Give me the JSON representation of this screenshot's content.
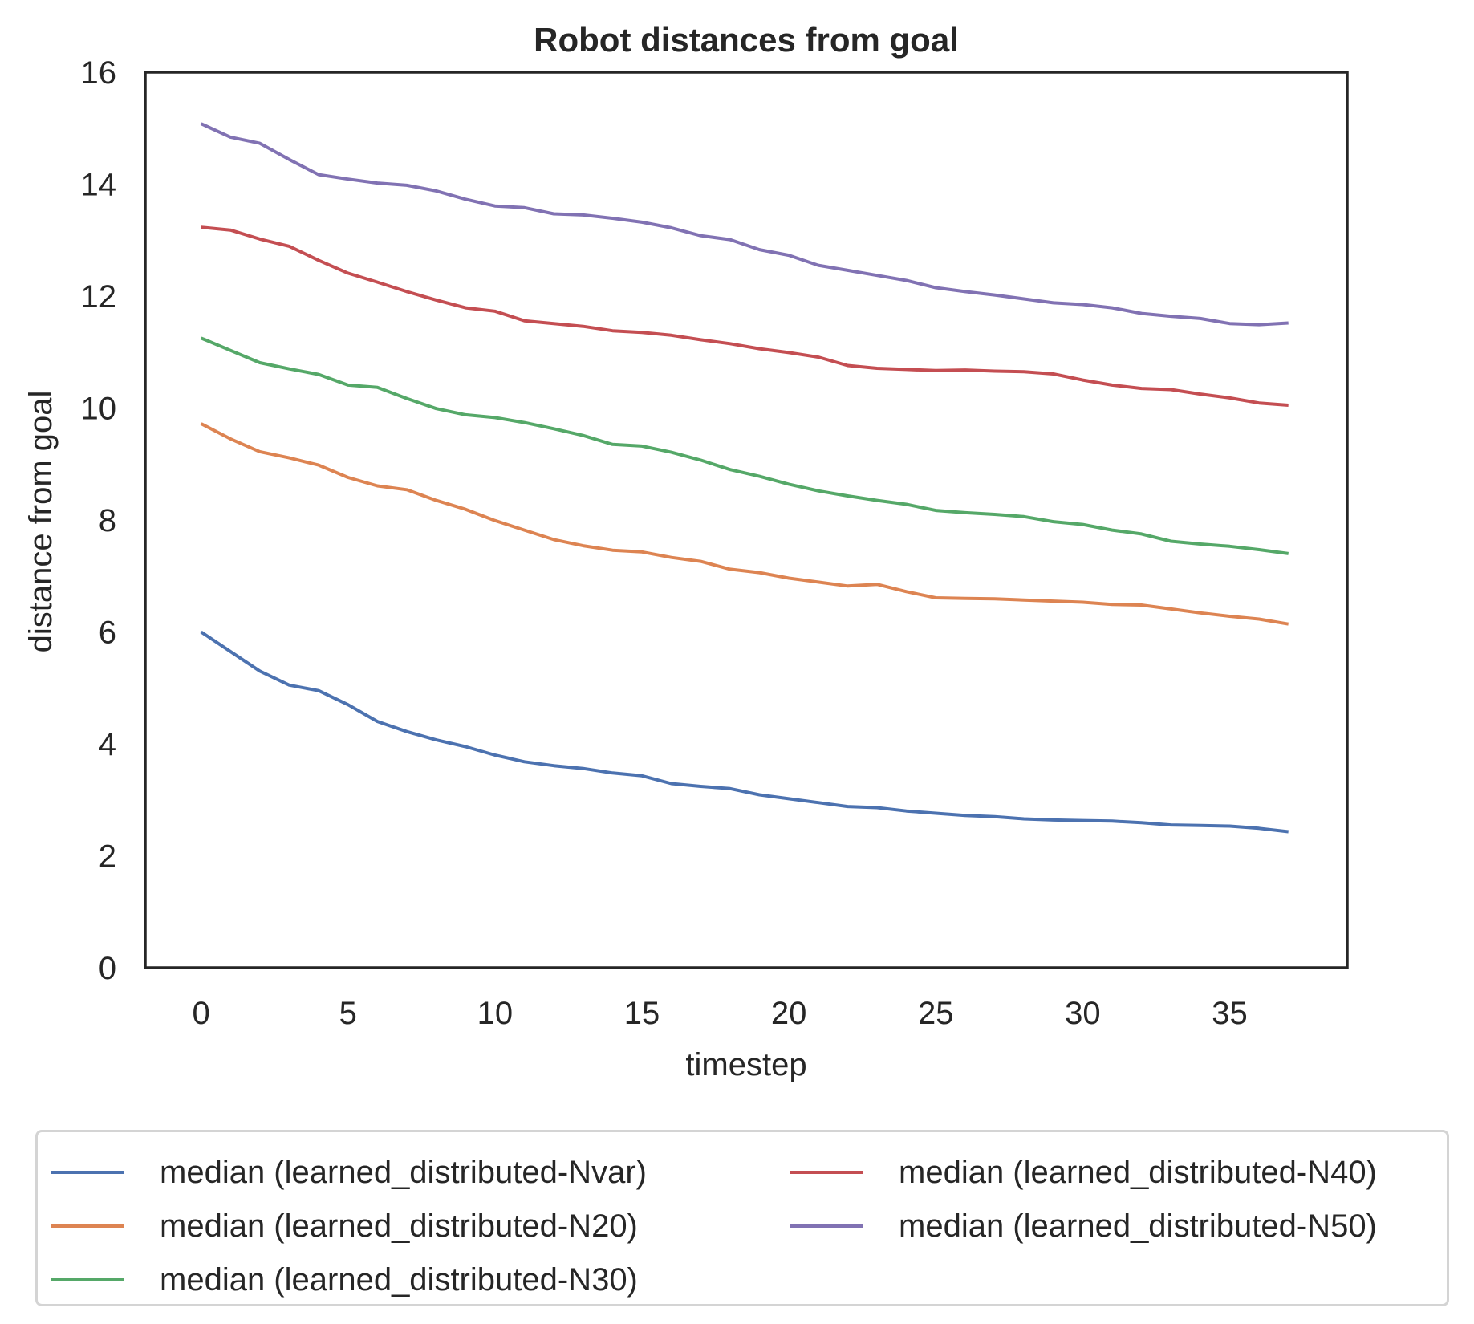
{
  "chart_data": {
    "type": "line",
    "title": "Robot distances from goal",
    "xlabel": "timestep",
    "ylabel": "distance from goal",
    "xlim": [
      -1.9,
      39
    ],
    "ylim": [
      0,
      16
    ],
    "xticks": [
      0,
      5,
      10,
      15,
      20,
      25,
      30,
      35
    ],
    "yticks": [
      0,
      2,
      4,
      6,
      8,
      10,
      12,
      14,
      16
    ],
    "grid": false,
    "legend_position": "below-center",
    "x": [
      0,
      1,
      2,
      3,
      4,
      5,
      6,
      7,
      8,
      9,
      10,
      11,
      12,
      13,
      14,
      15,
      16,
      17,
      18,
      19,
      20,
      21,
      22,
      23,
      24,
      25,
      26,
      27,
      28,
      29,
      30,
      31,
      32,
      33,
      34,
      35,
      36,
      37
    ],
    "series": [
      {
        "name": "median (learned_distributed-Nvar)",
        "color": "#4c72b0",
        "values": [
          6.0,
          5.65,
          5.3,
          5.05,
          4.95,
          4.7,
          4.4,
          4.22,
          4.07,
          3.95,
          3.8,
          3.68,
          3.61,
          3.56,
          3.48,
          3.43,
          3.29,
          3.24,
          3.2,
          3.09,
          3.02,
          2.95,
          2.88,
          2.86,
          2.8,
          2.76,
          2.72,
          2.7,
          2.66,
          2.64,
          2.63,
          2.62,
          2.59,
          2.55,
          2.54,
          2.53,
          2.49,
          2.43
        ]
      },
      {
        "name": "median (learned_distributed-N20)",
        "color": "#dd8452",
        "values": [
          9.72,
          9.45,
          9.22,
          9.11,
          8.98,
          8.76,
          8.61,
          8.54,
          8.35,
          8.19,
          7.99,
          7.82,
          7.65,
          7.54,
          7.46,
          7.43,
          7.33,
          7.26,
          7.12,
          7.06,
          6.96,
          6.89,
          6.82,
          6.85,
          6.72,
          6.61,
          6.6,
          6.59,
          6.57,
          6.55,
          6.53,
          6.49,
          6.48,
          6.41,
          6.34,
          6.28,
          6.23,
          6.14
        ]
      },
      {
        "name": "median (learned_distributed-N30)",
        "color": "#55a868",
        "values": [
          11.25,
          11.03,
          10.81,
          10.7,
          10.6,
          10.41,
          10.37,
          10.17,
          9.99,
          9.88,
          9.83,
          9.74,
          9.63,
          9.51,
          9.35,
          9.32,
          9.21,
          9.07,
          8.9,
          8.78,
          8.64,
          8.52,
          8.43,
          8.35,
          8.28,
          8.17,
          8.13,
          8.1,
          8.06,
          7.97,
          7.92,
          7.82,
          7.75,
          7.62,
          7.57,
          7.53,
          7.47,
          7.4
        ]
      },
      {
        "name": "median (learned_distributed-N40)",
        "color": "#c44e52",
        "values": [
          13.23,
          13.18,
          13.02,
          12.89,
          12.64,
          12.41,
          12.25,
          12.08,
          11.93,
          11.79,
          11.73,
          11.56,
          11.51,
          11.46,
          11.38,
          11.35,
          11.3,
          11.22,
          11.15,
          11.06,
          10.99,
          10.91,
          10.76,
          10.71,
          10.69,
          10.67,
          10.68,
          10.66,
          10.65,
          10.61,
          10.5,
          10.41,
          10.35,
          10.33,
          10.25,
          10.18,
          10.09,
          10.05
        ]
      },
      {
        "name": "median (learned_distributed-N50)",
        "color": "#8172b3",
        "values": [
          15.08,
          14.84,
          14.73,
          14.44,
          14.17,
          14.09,
          14.02,
          13.98,
          13.88,
          13.73,
          13.61,
          13.58,
          13.47,
          13.45,
          13.39,
          13.32,
          13.22,
          13.08,
          13.01,
          12.83,
          12.73,
          12.55,
          12.46,
          12.37,
          12.28,
          12.15,
          12.08,
          12.02,
          11.95,
          11.88,
          11.85,
          11.79,
          11.69,
          11.64,
          11.6,
          11.51,
          11.49,
          11.52
        ]
      }
    ]
  }
}
